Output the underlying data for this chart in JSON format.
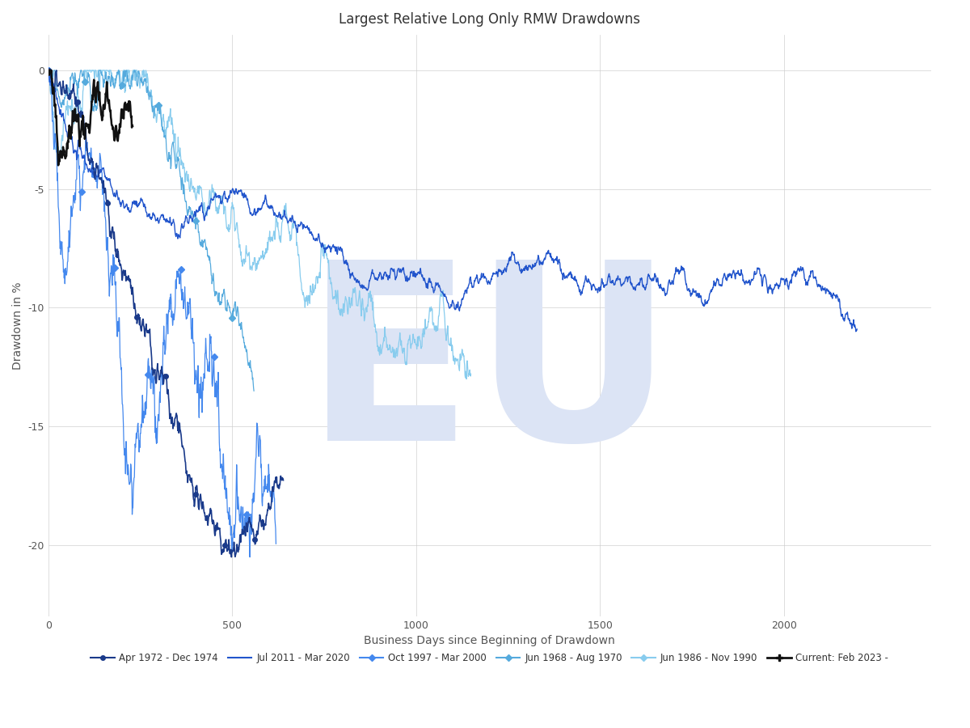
{
  "title": "Largest Relative Long Only RMW Drawdowns",
  "xlabel": "Business Days since Beginning of Drawdown",
  "ylabel": "Drawdown in %",
  "ylim": [
    -23,
    1.5
  ],
  "xlim": [
    0,
    2400
  ],
  "xticks": [
    0,
    500,
    1000,
    1500,
    2000
  ],
  "yticks": [
    0,
    -5,
    -10,
    -15,
    -20
  ],
  "background_color": "#ffffff",
  "grid_color": "#cccccc",
  "watermark_color": "#dce4f5",
  "watermark_text": "EU",
  "title_fontsize": 12,
  "axis_fontsize": 10,
  "tick_fontsize": 9,
  "colors": {
    "s1972": "#1a3a8a",
    "s2011": "#2255cc",
    "s1997": "#4488ee",
    "s1968": "#55aadd",
    "s1986": "#88ccee",
    "scurr": "#111111"
  }
}
